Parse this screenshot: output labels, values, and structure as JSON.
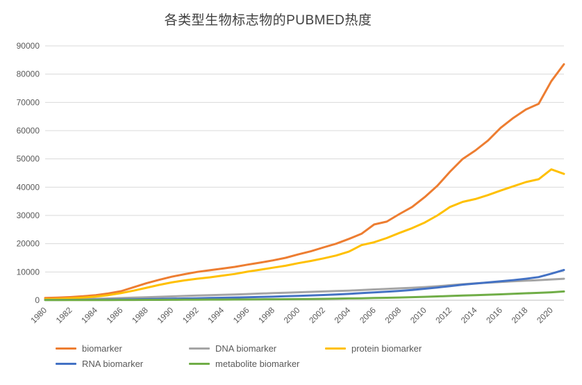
{
  "title": "各类型生物标志物的PUBMED热度",
  "chart_data": {
    "type": "line",
    "title": "各类型生物标志物的PUBMED热度",
    "xlabel": "",
    "ylabel": "",
    "ylim": [
      0,
      90000
    ],
    "yticks": [
      0,
      10000,
      20000,
      30000,
      40000,
      50000,
      60000,
      70000,
      80000,
      90000
    ],
    "xticks": [
      1980,
      1982,
      1984,
      1986,
      1988,
      1990,
      1992,
      1994,
      1996,
      1998,
      2000,
      2002,
      2004,
      2006,
      2008,
      2010,
      2012,
      2014,
      2016,
      2018,
      2020
    ],
    "grid": true,
    "legend_position": "bottom",
    "x": [
      1980,
      1981,
      1982,
      1983,
      1984,
      1985,
      1986,
      1987,
      1988,
      1989,
      1990,
      1991,
      1992,
      1993,
      1994,
      1995,
      1996,
      1997,
      1998,
      1999,
      2000,
      2001,
      2002,
      2003,
      2004,
      2005,
      2006,
      2007,
      2008,
      2009,
      2010,
      2011,
      2012,
      2013,
      2014,
      2015,
      2016,
      2017,
      2018,
      2019,
      2020,
      2021
    ],
    "series": [
      {
        "name": "biomarker",
        "color": "#ED7D31",
        "values": [
          800,
          900,
          1100,
          1400,
          1800,
          2400,
          3200,
          4600,
          6000,
          7200,
          8300,
          9200,
          10000,
          10600,
          11200,
          11800,
          12600,
          13300,
          14100,
          15000,
          16200,
          17300,
          18700,
          20000,
          21700,
          23500,
          26800,
          27800,
          30500,
          33000,
          36500,
          40500,
          45500,
          50000,
          53000,
          56500,
          61000,
          64500,
          67500,
          69500,
          77500,
          83500
        ]
      },
      {
        "name": "DNA biomarker",
        "color": "#A5A5A5",
        "values": [
          200,
          250,
          320,
          400,
          500,
          620,
          760,
          900,
          1050,
          1200,
          1350,
          1500,
          1650,
          1780,
          1900,
          2050,
          2200,
          2350,
          2500,
          2650,
          2800,
          2950,
          3100,
          3250,
          3400,
          3600,
          3800,
          4000,
          4200,
          4400,
          4650,
          4950,
          5300,
          5650,
          5950,
          6200,
          6450,
          6700,
          6900,
          7100,
          7350,
          7600
        ]
      },
      {
        "name": "protein biomarker",
        "color": "#FFC000",
        "values": [
          400,
          500,
          700,
          900,
          1300,
          1800,
          2500,
          3400,
          4400,
          5400,
          6300,
          7000,
          7600,
          8100,
          8700,
          9300,
          10100,
          10800,
          11500,
          12200,
          13100,
          13900,
          14800,
          15800,
          17200,
          19500,
          20500,
          22000,
          23800,
          25500,
          27500,
          30000,
          33000,
          34800,
          35800,
          37200,
          38800,
          40300,
          41800,
          42800,
          46300,
          44700
        ]
      },
      {
        "name": "RNA biomarker",
        "color": "#4472C4",
        "values": [
          100,
          110,
          130,
          150,
          180,
          220,
          270,
          330,
          400,
          470,
          550,
          620,
          700,
          780,
          860,
          950,
          1050,
          1150,
          1250,
          1400,
          1550,
          1700,
          1850,
          2050,
          2250,
          2500,
          2750,
          3000,
          3300,
          3650,
          4050,
          4500,
          5000,
          5500,
          5900,
          6300,
          6700,
          7100,
          7600,
          8200,
          9400,
          10700
        ]
      },
      {
        "name": "metabolite biomarker",
        "color": "#70AD47",
        "values": [
          50,
          55,
          60,
          65,
          72,
          80,
          90,
          100,
          115,
          130,
          150,
          170,
          190,
          210,
          230,
          250,
          280,
          310,
          340,
          370,
          400,
          450,
          500,
          560,
          630,
          700,
          780,
          860,
          950,
          1070,
          1200,
          1350,
          1500,
          1650,
          1800,
          1950,
          2100,
          2270,
          2450,
          2600,
          2800,
          3100
        ]
      }
    ]
  }
}
